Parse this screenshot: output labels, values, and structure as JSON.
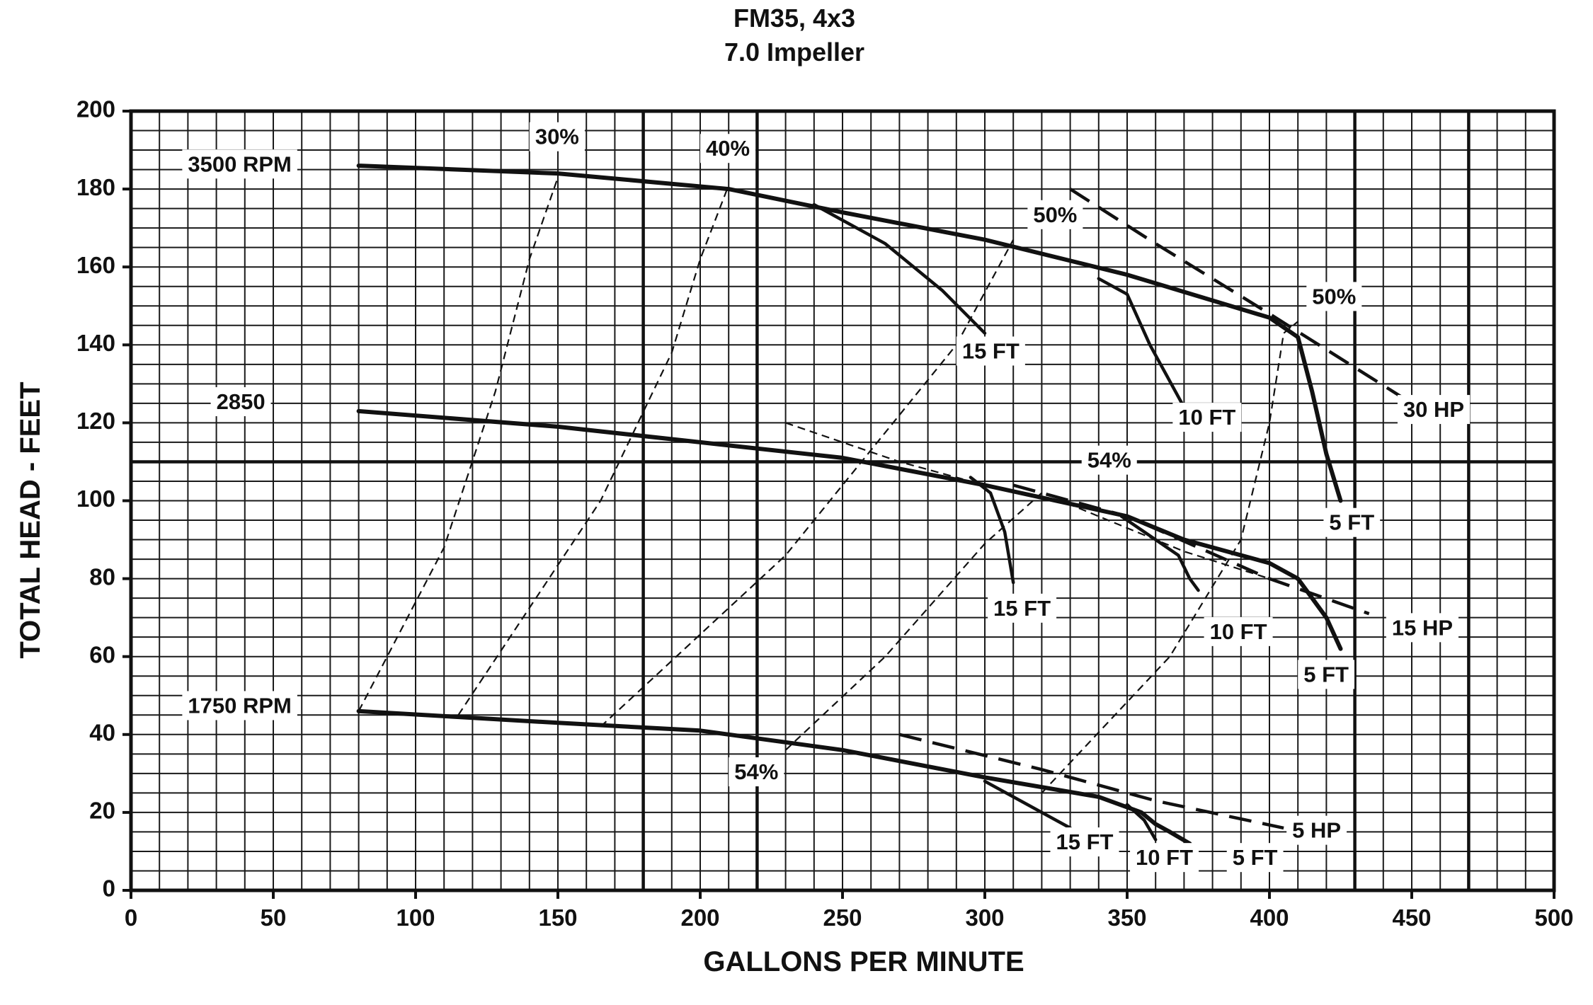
{
  "chart_data": {
    "type": "line",
    "title": "FM35, 4x3",
    "subtitle": "7.0 Impeller",
    "xlabel": "GALLONS PER MINUTE",
    "ylabel": "TOTAL HEAD - FEET",
    "xlim": [
      0,
      500
    ],
    "ylim": [
      0,
      200
    ],
    "x_ticks": [
      0,
      50,
      100,
      150,
      200,
      250,
      300,
      350,
      400,
      450,
      500
    ],
    "y_ticks": [
      0,
      20,
      40,
      60,
      80,
      100,
      120,
      140,
      160,
      180,
      200
    ],
    "x_tick_labels": [
      "0",
      "50",
      "100",
      "150",
      "200",
      "250",
      "300",
      "350",
      "400",
      "450",
      "500"
    ],
    "y_tick_labels": [
      "0",
      "20",
      "40",
      "60",
      "80",
      "100",
      "120",
      "140",
      "160",
      "180",
      "200"
    ],
    "grid": true,
    "grid_minor_x_step": 10,
    "grid_minor_y_step": 5,
    "grid_major_x": [
      180,
      220,
      430,
      470
    ],
    "grid_major_y": [
      110
    ],
    "speed_curves": [
      {
        "name": "3500 RPM",
        "points": [
          [
            80,
            186
          ],
          [
            150,
            184
          ],
          [
            210,
            180
          ],
          [
            250,
            174
          ],
          [
            300,
            167
          ],
          [
            350,
            158
          ],
          [
            400,
            147
          ],
          [
            410,
            142
          ],
          [
            415,
            128
          ],
          [
            420,
            112
          ],
          [
            425,
            100
          ]
        ]
      },
      {
        "name": "2850",
        "points": [
          [
            80,
            123
          ],
          [
            150,
            119
          ],
          [
            200,
            115
          ],
          [
            250,
            111
          ],
          [
            300,
            104
          ],
          [
            350,
            96
          ],
          [
            370,
            90
          ],
          [
            400,
            84
          ],
          [
            410,
            80
          ],
          [
            420,
            70
          ],
          [
            425,
            62
          ]
        ]
      },
      {
        "name": "1750 RPM",
        "points": [
          [
            80,
            46
          ],
          [
            150,
            43
          ],
          [
            200,
            41
          ],
          [
            250,
            36
          ],
          [
            300,
            29
          ],
          [
            340,
            24
          ],
          [
            355,
            20
          ],
          [
            360,
            17
          ],
          [
            365,
            15
          ],
          [
            372,
            12
          ]
        ]
      }
    ],
    "npsh_curves": [
      {
        "name": "15 FT",
        "points": [
          [
            240,
            176
          ],
          [
            265,
            166
          ],
          [
            285,
            154
          ],
          [
            300,
            143
          ]
        ]
      },
      {
        "name": "10 FT",
        "points": [
          [
            340,
            157
          ],
          [
            350,
            153
          ],
          [
            358,
            140
          ],
          [
            370,
            124
          ]
        ]
      },
      {
        "name": "15 FT",
        "points": [
          [
            295,
            106
          ],
          [
            302,
            102
          ],
          [
            307,
            92
          ],
          [
            310,
            79
          ]
        ]
      },
      {
        "name": "10 FT",
        "points": [
          [
            348,
            96
          ],
          [
            368,
            86
          ],
          [
            372,
            80
          ],
          [
            375,
            77
          ]
        ]
      },
      {
        "name": "15 FT",
        "points": [
          [
            300,
            28
          ],
          [
            315,
            22
          ],
          [
            330,
            16
          ]
        ]
      },
      {
        "name": "10 FT",
        "points": [
          [
            350,
            22
          ],
          [
            356,
            18
          ],
          [
            360,
            13
          ]
        ]
      }
    ],
    "efficiency_lines": [
      {
        "name": "30%",
        "points": [
          [
            80,
            46
          ],
          [
            110,
            88
          ],
          [
            128,
            128
          ],
          [
            140,
            162
          ],
          [
            150,
            183
          ]
        ]
      },
      {
        "name": "40%",
        "points": [
          [
            115,
            45
          ],
          [
            165,
            100
          ],
          [
            190,
            138
          ],
          [
            200,
            162
          ],
          [
            210,
            181
          ]
        ]
      },
      {
        "name": "50%",
        "points": [
          [
            165,
            42
          ],
          [
            230,
            86
          ],
          [
            290,
            140
          ],
          [
            310,
            167
          ]
        ]
      },
      {
        "name": "54%",
        "points": [
          [
            230,
            36
          ],
          [
            265,
            60
          ],
          [
            300,
            89
          ],
          [
            320,
            102
          ]
        ]
      },
      {
        "name": "50%",
        "points": [
          [
            320,
            25
          ],
          [
            365,
            60
          ],
          [
            390,
            90
          ],
          [
            400,
            120
          ],
          [
            405,
            143
          ],
          [
            410,
            146
          ]
        ]
      },
      {
        "name": "54%",
        "points": [
          [
            230,
            120
          ],
          [
            270,
            110
          ],
          [
            300,
            104
          ],
          [
            330,
            99
          ],
          [
            370,
            87
          ],
          [
            400,
            80
          ]
        ]
      }
    ],
    "horsepower_lines": [
      {
        "name": "30 HP",
        "points": [
          [
            330,
            180
          ],
          [
            360,
            166
          ],
          [
            400,
            148
          ],
          [
            450,
            125
          ]
        ]
      },
      {
        "name": "15 HP",
        "points": [
          [
            310,
            104
          ],
          [
            350,
            96
          ],
          [
            400,
            80
          ],
          [
            435,
            71
          ]
        ]
      },
      {
        "name": "5 HP",
        "points": [
          [
            270,
            40
          ],
          [
            320,
            31
          ],
          [
            360,
            23
          ],
          [
            405,
            16
          ]
        ]
      }
    ],
    "annotations": [
      {
        "text": "3500 RPM",
        "x": 20,
        "y": 186
      },
      {
        "text": "2850",
        "x": 30,
        "y": 125
      },
      {
        "text": "1750 RPM",
        "x": 20,
        "y": 47
      },
      {
        "text": "30%",
        "x": 142,
        "y": 193
      },
      {
        "text": "40%",
        "x": 202,
        "y": 190
      },
      {
        "text": "50%",
        "x": 317,
        "y": 173
      },
      {
        "text": "50%",
        "x": 415,
        "y": 152
      },
      {
        "text": "54%",
        "x": 336,
        "y": 110
      },
      {
        "text": "54%",
        "x": 212,
        "y": 30
      },
      {
        "text": "15 FT",
        "x": 292,
        "y": 138
      },
      {
        "text": "10 FT",
        "x": 368,
        "y": 121
      },
      {
        "text": "5 FT",
        "x": 421,
        "y": 94
      },
      {
        "text": "15 FT",
        "x": 303,
        "y": 72
      },
      {
        "text": "10 FT",
        "x": 379,
        "y": 66
      },
      {
        "text": "5 FT",
        "x": 412,
        "y": 55
      },
      {
        "text": "30 HP",
        "x": 447,
        "y": 123
      },
      {
        "text": "15 HP",
        "x": 443,
        "y": 67
      },
      {
        "text": "5 HP",
        "x": 408,
        "y": 15
      },
      {
        "text": "15 FT",
        "x": 325,
        "y": 12
      },
      {
        "text": "10 FT",
        "x": 353,
        "y": 8
      },
      {
        "text": "5 FT",
        "x": 387,
        "y": 8
      }
    ]
  }
}
